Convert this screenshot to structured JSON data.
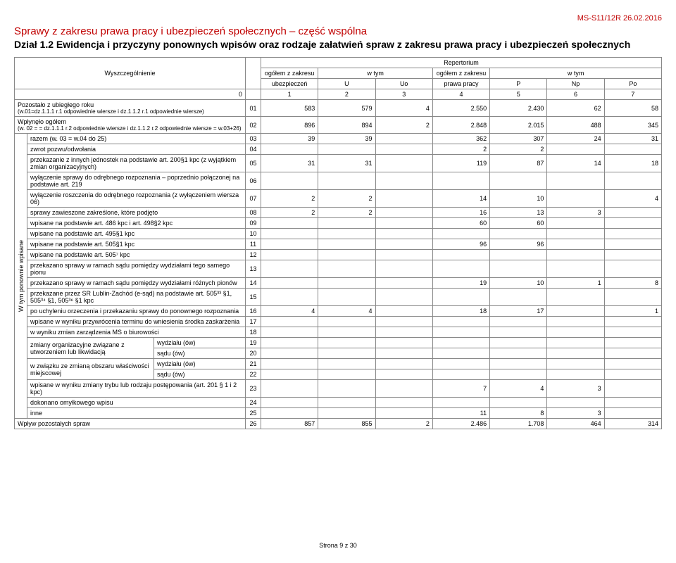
{
  "header": {
    "code": "MS-S11/12R 26.02.2016",
    "section": "Sprawy z zakresu prawa pracy i ubezpieczeń społecznych – część wspólna",
    "dzial": "Dział 1.2  Ewidencja  i przyczyny ponownych wpisów oraz rodzaje załatwień spraw z zakresu prawa pracy i ubezpieczeń społecznych"
  },
  "colHead": {
    "wysz": "Wyszczególnienie",
    "repert": "Repertorium",
    "ogZakresu": "ogółem z zakresu",
    "ubez": "ubezpieczeń",
    "wtym": "w tym",
    "U": "U",
    "Uo": "Uo",
    "prawaPracy": "prawa pracy",
    "P": "P",
    "Np": "Np",
    "Po": "Po",
    "zero": "0",
    "nums": [
      "1",
      "2",
      "3",
      "4",
      "5",
      "6",
      "7"
    ]
  },
  "rows": [
    {
      "idx": "01",
      "label": "Pozostało z ubiegłego roku",
      "sublabel": "(w.01=dz.1.1.1 r.1 odpowiednie wiersze i dz.1.1.2 r.1 odpowiednie wiersze)",
      "colspan": 3,
      "v": [
        "583",
        "579",
        "4",
        "2.550",
        "2.430",
        "62",
        "58"
      ]
    },
    {
      "idx": "02",
      "label": "Wpłynęło ogółem",
      "sublabel": "(w. 02 = = dz.1.1.1 r.2 odpowiednie wiersze i dz.1.1.2 r.2 odpowiednie wiersze = w.03+26)",
      "colspan": 3,
      "v": [
        "896",
        "894",
        "2",
        "2.848",
        "2.015",
        "488",
        "345"
      ]
    }
  ],
  "sideLabel": "W tym ponownie wpisane",
  "subRows": [
    {
      "idx": "03",
      "label": "razem (w. 03 = w.04 do 25)",
      "colspan": 2,
      "v": [
        "39",
        "39",
        "",
        "362",
        "307",
        "24",
        "31"
      ]
    },
    {
      "idx": "04",
      "label": "zwrot pozwu/odwołania",
      "colspan": 2,
      "v": [
        "",
        "",
        "",
        "2",
        "2",
        "",
        ""
      ]
    },
    {
      "idx": "05",
      "label": "przekazanie z innych jednostek na podstawie art. 200§1 kpc (z wyjątkiem zmian organizacyjnych)",
      "colspan": 2,
      "v": [
        "31",
        "31",
        "",
        "119",
        "87",
        "14",
        "18"
      ]
    },
    {
      "idx": "06",
      "label": "wyłączenie sprawy do odrębnego rozpoznania – poprzednio połączonej na podstawie art. 219",
      "colspan": 2,
      "v": [
        "",
        "",
        "",
        "",
        "",
        "",
        ""
      ]
    },
    {
      "idx": "07",
      "label": "wyłączenie roszczenia do odrębnego rozpoznania (z wyłączeniem wiersza 06)",
      "colspan": 2,
      "v": [
        "2",
        "2",
        "",
        "14",
        "10",
        "",
        "4"
      ]
    },
    {
      "idx": "08",
      "label": "sprawy zawieszone zakreślone, które podjęto",
      "colspan": 2,
      "v": [
        "2",
        "2",
        "",
        "16",
        "13",
        "3",
        ""
      ]
    },
    {
      "idx": "09",
      "label": "wpisane na podstawie art. 486 kpc i art. 498§2 kpc",
      "colspan": 2,
      "v": [
        "",
        "",
        "",
        "60",
        "60",
        "",
        ""
      ]
    },
    {
      "idx": "10",
      "label": "wpisane na podstawie art. 495§1 kpc",
      "colspan": 2,
      "v": [
        "",
        "",
        "",
        "",
        "",
        "",
        ""
      ]
    },
    {
      "idx": "11",
      "label": "wpisane na podstawie art. 505§1 kpc",
      "colspan": 2,
      "v": [
        "",
        "",
        "",
        "96",
        "96",
        "",
        ""
      ]
    },
    {
      "idx": "12",
      "label": "wpisane na podstawie art. 505⁷ kpc",
      "colspan": 2,
      "v": [
        "",
        "",
        "",
        "",
        "",
        "",
        ""
      ]
    },
    {
      "idx": "13",
      "label": "przekazano sprawy w ramach sądu pomiędzy wydziałami tego samego pionu",
      "colspan": 2,
      "v": [
        "",
        "",
        "",
        "",
        "",
        "",
        ""
      ]
    },
    {
      "idx": "14",
      "label": "przekazano sprawy w ramach sądu pomiędzy wydziałami różnych pionów",
      "colspan": 2,
      "v": [
        "",
        "",
        "",
        "19",
        "10",
        "1",
        "8"
      ]
    },
    {
      "idx": "15",
      "label": "przekazane przez SR Lublin-Zachód (e-sąd) na podstawie art. 505³³ §1, 505³⁴ §1,  505³⁶ §1 kpc",
      "colspan": 2,
      "v": [
        "",
        "",
        "",
        "",
        "",
        "",
        ""
      ]
    },
    {
      "idx": "16",
      "label": "po uchyleniu orzeczenia i przekazaniu sprawy do ponownego rozpoznania",
      "colspan": 2,
      "v": [
        "4",
        "4",
        "",
        "18",
        "17",
        "",
        "1"
      ]
    },
    {
      "idx": "17",
      "label": "wpisane w wyniku przywrócenia terminu do wniesienia środka zaskarżenia",
      "colspan": 2,
      "v": [
        "",
        "",
        "",
        "",
        "",
        "",
        ""
      ]
    },
    {
      "idx": "18",
      "label": "w wyniku zmian zarządzenia MS o biurowości",
      "colspan": 2,
      "v": [
        "",
        "",
        "",
        "",
        "",
        "",
        ""
      ]
    },
    {
      "idx": "19",
      "label": "zmiany organizacyjne związane z utworzeniem lub likwidacją",
      "label2": "wydziału (ów)",
      "group": "g1",
      "groupRows": 2,
      "v": [
        "",
        "",
        "",
        "",
        "",
        "",
        ""
      ]
    },
    {
      "idx": "20",
      "label2": "sądu (ów)",
      "group": "g1",
      "v": [
        "",
        "",
        "",
        "",
        "",
        "",
        ""
      ]
    },
    {
      "idx": "21",
      "label": "w związku ze zmianą obszaru właściwości miejscowej",
      "label2": "wydziału (ów)",
      "group": "g2",
      "groupRows": 2,
      "v": [
        "",
        "",
        "",
        "",
        "",
        "",
        ""
      ]
    },
    {
      "idx": "22",
      "label2": "sądu (ów)",
      "group": "g2",
      "v": [
        "",
        "",
        "",
        "",
        "",
        "",
        ""
      ]
    },
    {
      "idx": "23",
      "label": "wpisane w wyniku zmiany trybu lub rodzaju postępowania (art. 201 § 1 i 2 kpc)",
      "colspan": 2,
      "v": [
        "",
        "",
        "",
        "7",
        "4",
        "3",
        ""
      ]
    },
    {
      "idx": "24",
      "label": "dokonano omyłkowego wpisu",
      "colspan": 2,
      "v": [
        "",
        "",
        "",
        "",
        "",
        "",
        ""
      ]
    },
    {
      "idx": "25",
      "label": "inne",
      "colspan": 2,
      "v": [
        "",
        "",
        "",
        "11",
        "8",
        "3",
        ""
      ]
    }
  ],
  "lastRow": {
    "idx": "26",
    "label": "Wpływ pozostałych spraw",
    "colspan": 3,
    "v": [
      "857",
      "855",
      "2",
      "2.486",
      "1.708",
      "464",
      "314"
    ]
  },
  "footer": "Strona 9 z 30"
}
